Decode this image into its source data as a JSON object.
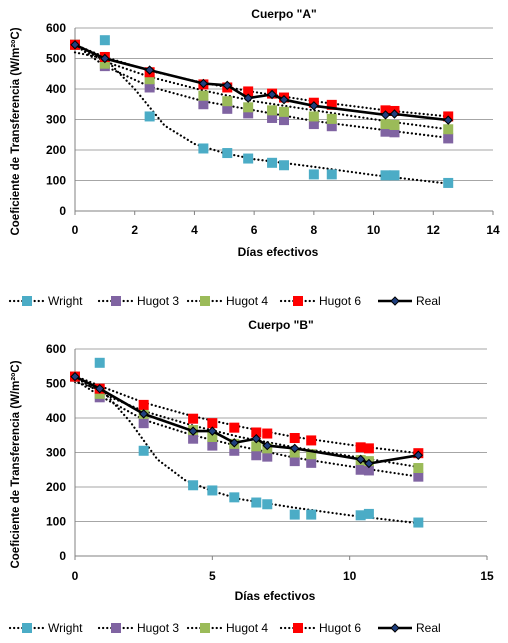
{
  "chart_data": [
    {
      "type": "scatter",
      "title": "Cuerpo \"A\"",
      "xlabel": "Días efectivos",
      "ylabel": "Coeficiente de Transferencia (W/m²ºC)",
      "xlim": [
        0,
        14
      ],
      "ylim": [
        0,
        600
      ],
      "xticks": [
        "0",
        "2",
        "4",
        "6",
        "8",
        "10",
        "12",
        "14"
      ],
      "yticks": [
        "0",
        "100",
        "200",
        "300",
        "400",
        "500",
        "600"
      ],
      "grid": true,
      "legend_position": "bottom",
      "series": [
        {
          "name": "Wright",
          "color": "#4BACC6",
          "marker": "square",
          "line": "dotted",
          "x": [
            0,
            1,
            2.5,
            4.3,
            5.1,
            5.8,
            6.6,
            7,
            8,
            8.6,
            10.4,
            10.7,
            12.5
          ],
          "y": [
            545,
            560,
            310,
            205,
            190,
            172,
            158,
            150,
            120,
            120,
            117,
            117,
            92
          ],
          "fit": [
            [
              0,
              520
            ],
            [
              1,
              500
            ],
            [
              2,
              400
            ],
            [
              3,
              280
            ],
            [
              4,
              220
            ],
            [
              5,
              190
            ],
            [
              6,
              170
            ],
            [
              8,
              145
            ],
            [
              10,
              118
            ],
            [
              12.5,
              90
            ]
          ]
        },
        {
          "name": "Hugot 3",
          "color": "#8064A2",
          "marker": "square",
          "line": "dotted",
          "x": [
            0,
            1,
            2.5,
            4.3,
            5.1,
            5.8,
            6.6,
            7,
            8,
            8.6,
            10.4,
            10.7,
            12.5
          ],
          "y": [
            545,
            475,
            405,
            350,
            335,
            320,
            305,
            298,
            285,
            278,
            260,
            258,
            238
          ],
          "fit": [
            [
              0,
              545
            ],
            [
              1,
              475
            ],
            [
              2.5,
              408
            ],
            [
              4.3,
              360
            ],
            [
              6,
              330
            ],
            [
              8,
              295
            ],
            [
              10.4,
              265
            ],
            [
              12.5,
              240
            ]
          ]
        },
        {
          "name": "Hugot 4",
          "color": "#9BBB59",
          "marker": "square",
          "line": "dotted",
          "x": [
            0,
            1,
            2.5,
            4.3,
            5.1,
            5.8,
            6.6,
            7,
            8,
            8.6,
            10.4,
            10.7,
            12.5
          ],
          "y": [
            545,
            483,
            432,
            378,
            360,
            340,
            330,
            325,
            310,
            302,
            285,
            282,
            268
          ],
          "fit": [
            [
              0,
              545
            ],
            [
              1,
              490
            ],
            [
              2.5,
              440
            ],
            [
              4.3,
              395
            ],
            [
              6,
              360
            ],
            [
              8,
              330
            ],
            [
              10.4,
              295
            ],
            [
              12.5,
              268
            ]
          ]
        },
        {
          "name": "Hugot 6",
          "color": "#FF0000",
          "marker": "square",
          "line": "dotted",
          "x": [
            0,
            1,
            2.5,
            4.3,
            5.1,
            5.8,
            6.6,
            7,
            8,
            8.6,
            10.4,
            10.7,
            12.5
          ],
          "y": [
            545,
            505,
            455,
            415,
            405,
            392,
            385,
            372,
            355,
            348,
            330,
            328,
            310
          ],
          "fit": [
            [
              0,
              545
            ],
            [
              1,
              505
            ],
            [
              2.5,
              460
            ],
            [
              4.3,
              420
            ],
            [
              6,
              390
            ],
            [
              8,
              360
            ],
            [
              10.4,
              330
            ],
            [
              12.5,
              310
            ]
          ]
        },
        {
          "name": "Real",
          "color": "#000000",
          "marker": "diamond",
          "line": "solid",
          "x": [
            0,
            1,
            2.5,
            4.3,
            5.1,
            5.8,
            6.6,
            7,
            8,
            10.4,
            10.7,
            12.5
          ],
          "y": [
            545,
            500,
            462,
            418,
            412,
            370,
            382,
            365,
            345,
            315,
            318,
            298
          ]
        }
      ]
    },
    {
      "type": "scatter",
      "title": "Cuerpo \"B\"",
      "xlabel": "Días efectivos",
      "ylabel": "Coeficiente de Transferencia (W/m²ºC)",
      "xlim": [
        0,
        15
      ],
      "ylim": [
        0,
        600
      ],
      "xticks": [
        "0",
        "5",
        "10",
        "15"
      ],
      "yticks": [
        "0",
        "100",
        "200",
        "300",
        "400",
        "500",
        "600"
      ],
      "grid": true,
      "legend_position": "bottom",
      "series": [
        {
          "name": "Wright",
          "color": "#4BACC6",
          "marker": "square",
          "line": "dotted",
          "x": [
            0,
            0.9,
            2.5,
            4.3,
            5,
            5.8,
            6.6,
            7,
            8,
            8.6,
            10.4,
            10.7,
            12.5
          ],
          "y": [
            520,
            560,
            305,
            205,
            190,
            170,
            155,
            150,
            120,
            120,
            118,
            122,
            97
          ],
          "fit": [
            [
              0,
              505
            ],
            [
              1,
              480
            ],
            [
              2,
              390
            ],
            [
              3,
              280
            ],
            [
              4,
              220
            ],
            [
              5,
              188
            ],
            [
              6,
              165
            ],
            [
              8,
              140
            ],
            [
              10,
              118
            ],
            [
              12.5,
              95
            ]
          ]
        },
        {
          "name": "Hugot 3",
          "color": "#8064A2",
          "marker": "square",
          "line": "dotted",
          "x": [
            0,
            0.9,
            2.5,
            4.3,
            5,
            5.8,
            6.6,
            7,
            8,
            8.6,
            10.4,
            10.7,
            12.5
          ],
          "y": [
            520,
            460,
            385,
            340,
            320,
            305,
            292,
            288,
            275,
            270,
            250,
            248,
            230
          ],
          "fit": [
            [
              0,
              510
            ],
            [
              1,
              460
            ],
            [
              2.5,
              395
            ],
            [
              4.3,
              350
            ],
            [
              6,
              318
            ],
            [
              8,
              285
            ],
            [
              10.4,
              255
            ],
            [
              12.5,
              230
            ]
          ]
        },
        {
          "name": "Hugot 4",
          "color": "#9BBB59",
          "marker": "square",
          "line": "dotted",
          "x": [
            0,
            0.9,
            2.5,
            4.3,
            5,
            5.8,
            6.6,
            7,
            8,
            8.6,
            10.4,
            10.7,
            12.5
          ],
          "y": [
            520,
            470,
            412,
            365,
            345,
            325,
            318,
            312,
            300,
            295,
            278,
            275,
            255
          ],
          "fit": [
            [
              0,
              518
            ],
            [
              1,
              470
            ],
            [
              2.5,
              420
            ],
            [
              4.3,
              378
            ],
            [
              6,
              345
            ],
            [
              8,
              315
            ],
            [
              10.4,
              285
            ],
            [
              12.5,
              258
            ]
          ]
        },
        {
          "name": "Hugot 6",
          "color": "#FF0000",
          "marker": "square",
          "line": "dotted",
          "x": [
            0,
            0.9,
            2.5,
            4.3,
            5,
            5.8,
            6.6,
            7,
            8,
            8.6,
            10.4,
            10.7,
            12.5
          ],
          "y": [
            520,
            485,
            438,
            398,
            385,
            372,
            358,
            355,
            342,
            335,
            315,
            312,
            298
          ],
          "fit": [
            [
              0,
              522
            ],
            [
              1,
              490
            ],
            [
              2.5,
              445
            ],
            [
              4.3,
              405
            ],
            [
              6,
              375
            ],
            [
              8,
              345
            ],
            [
              10.4,
              318
            ],
            [
              12.5,
              298
            ]
          ]
        },
        {
          "name": "Real",
          "color": "#000000",
          "marker": "diamond",
          "line": "solid",
          "x": [
            0,
            0.9,
            2.5,
            4.3,
            5,
            5.8,
            6.6,
            7,
            8,
            10.4,
            10.7,
            12.5
          ],
          "y": [
            520,
            485,
            412,
            362,
            362,
            328,
            340,
            320,
            312,
            280,
            268,
            292
          ]
        }
      ]
    }
  ]
}
